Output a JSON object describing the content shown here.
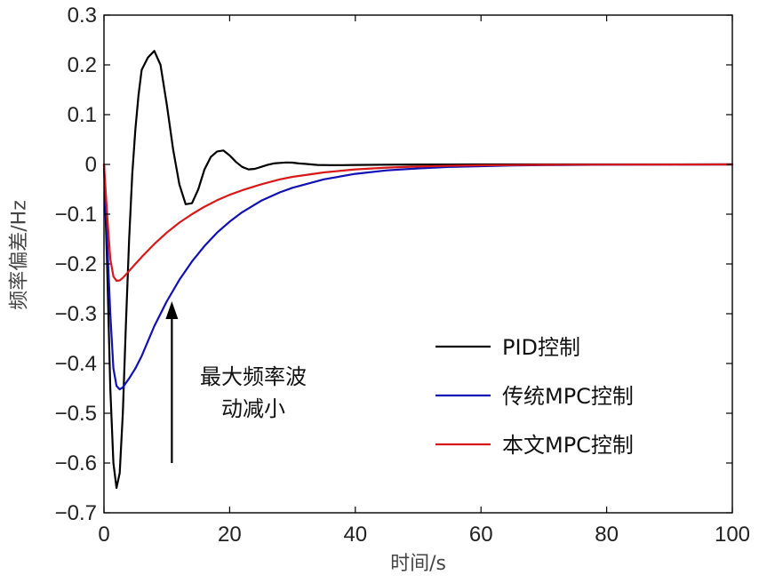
{
  "chart_data": {
    "type": "line",
    "xlabel": "时间/s",
    "ylabel": "频率偏差/Hz",
    "xlim": [
      0,
      100
    ],
    "ylim": [
      -0.7,
      0.3
    ],
    "xticks": [
      0,
      20,
      40,
      60,
      80,
      100
    ],
    "xtick_labels": [
      "0",
      "20",
      "40",
      "60",
      "80",
      "100"
    ],
    "yticks": [
      0.3,
      0.2,
      0.1,
      0,
      -0.1,
      -0.2,
      -0.3,
      -0.4,
      -0.5,
      -0.6,
      -0.7
    ],
    "ytick_labels": [
      "0.3",
      "0.2",
      "0.1",
      "0",
      "−0.1",
      "−0.2",
      "−0.3",
      "−0.4",
      "−0.5",
      "−0.6",
      "−0.7"
    ],
    "grid": false,
    "legend_position": "middle-right",
    "series": [
      {
        "name": "PID控制",
        "color": "#000000",
        "x": [
          0,
          0.5,
          1,
          1.5,
          2,
          2.5,
          3,
          3.5,
          4,
          4.5,
          5,
          5.5,
          6,
          7,
          8,
          9,
          10,
          11,
          12,
          13,
          14,
          15,
          16,
          17,
          18,
          19,
          20,
          21,
          22,
          23,
          24,
          25,
          26,
          27,
          28,
          29,
          30,
          31,
          32,
          34,
          36,
          38,
          40,
          45,
          50,
          60,
          70,
          80,
          90,
          100
        ],
        "y": [
          0,
          -0.2,
          -0.45,
          -0.6,
          -0.65,
          -0.62,
          -0.5,
          -0.32,
          -0.15,
          -0.02,
          0.07,
          0.14,
          0.19,
          0.215,
          0.228,
          0.2,
          0.12,
          0.03,
          -0.04,
          -0.08,
          -0.078,
          -0.05,
          -0.01,
          0.015,
          0.026,
          0.028,
          0.018,
          0.005,
          -0.005,
          -0.01,
          -0.009,
          -0.005,
          -0.001,
          0.002,
          0.003,
          0.004,
          0.0035,
          0.002,
          0.001,
          -0.001,
          -0.0015,
          -0.0015,
          -0.001,
          -0.0005,
          -0.0002,
          0,
          0,
          0,
          0,
          0
        ]
      },
      {
        "name": "传统MPC控制",
        "color": "#1010b4",
        "x": [
          0,
          0.5,
          1,
          1.5,
          2,
          2.5,
          3,
          4,
          5,
          6,
          7,
          8,
          10,
          12,
          14,
          16,
          18,
          20,
          22,
          25,
          28,
          30,
          35,
          40,
          45,
          50,
          55,
          60,
          65,
          70,
          80,
          90,
          100
        ],
        "y": [
          0,
          -0.15,
          -0.3,
          -0.41,
          -0.445,
          -0.452,
          -0.448,
          -0.43,
          -0.41,
          -0.385,
          -0.355,
          -0.325,
          -0.275,
          -0.232,
          -0.195,
          -0.164,
          -0.137,
          -0.115,
          -0.096,
          -0.073,
          -0.056,
          -0.047,
          -0.03,
          -0.019,
          -0.012,
          -0.008,
          -0.005,
          -0.0035,
          -0.0022,
          -0.0014,
          -0.0006,
          -0.0002,
          0
        ]
      },
      {
        "name": "本文MPC控制",
        "color": "#d81818",
        "x": [
          0,
          0.5,
          1,
          1.5,
          2,
          2.5,
          3,
          4,
          5,
          6,
          7,
          8,
          10,
          12,
          14,
          16,
          18,
          20,
          22,
          25,
          28,
          30,
          35,
          40,
          45,
          50,
          55,
          60,
          65,
          70,
          80,
          90,
          100
        ],
        "y": [
          0,
          -0.1,
          -0.19,
          -0.225,
          -0.234,
          -0.233,
          -0.228,
          -0.214,
          -0.2,
          -0.186,
          -0.173,
          -0.16,
          -0.137,
          -0.117,
          -0.1,
          -0.085,
          -0.072,
          -0.061,
          -0.052,
          -0.04,
          -0.03,
          -0.025,
          -0.016,
          -0.01,
          -0.0065,
          -0.0042,
          -0.0027,
          -0.0018,
          -0.0012,
          -0.0008,
          -0.0003,
          -0.0001,
          0
        ]
      }
    ],
    "annotation": {
      "lines": [
        "最大频率波",
        "动减小"
      ],
      "arrow_x": 10.8,
      "arrow_y_from": -0.6,
      "arrow_y_to": -0.275
    }
  }
}
